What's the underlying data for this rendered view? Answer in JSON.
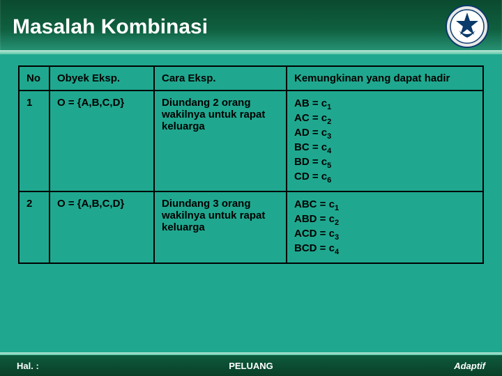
{
  "header": {
    "title": "Masalah Kombinasi",
    "title_color": "#ffffff",
    "bg_gradient": [
      "#0b4a2f",
      "#0f6040",
      "#2a9b7d"
    ]
  },
  "page_bg": "#1fa88f",
  "table": {
    "border_color": "#000000",
    "text_color": "#000000",
    "headers": {
      "no": "No",
      "obyek": "Obyek Eksp.",
      "cara": "Cara Eksp.",
      "kemungkinan": "Kemungkinan yang dapat hadir"
    },
    "rows": [
      {
        "no": "1",
        "obyek": "O = {A,B,C,D}",
        "cara": "Diundang 2 orang wakilnya untuk rapat keluarga",
        "km": [
          {
            "pair": "AB",
            "idx": "1"
          },
          {
            "pair": "AC",
            "idx": "2"
          },
          {
            "pair": "AD",
            "idx": "3"
          },
          {
            "pair": "BC",
            "idx": "4"
          },
          {
            "pair": "BD",
            "idx": "5"
          },
          {
            "pair": "CD",
            "idx": "6"
          }
        ]
      },
      {
        "no": "2",
        "obyek": "O = {A,B,C,D}",
        "cara": "Diundang 3 orang wakilnya untuk rapat keluarga",
        "km": [
          {
            "pair": "ABC",
            "idx": "1"
          },
          {
            "pair": "ABD",
            "idx": "2"
          },
          {
            "pair": "ACD",
            "idx": "3"
          },
          {
            "pair": "BCD",
            "idx": "4"
          }
        ]
      }
    ]
  },
  "footer": {
    "left": "Hal. :",
    "center": "PELUANG",
    "right": "Adaptif",
    "bg_gradient": [
      "#0d5a3d",
      "#0a4028"
    ],
    "text_color": "#ffffff"
  }
}
